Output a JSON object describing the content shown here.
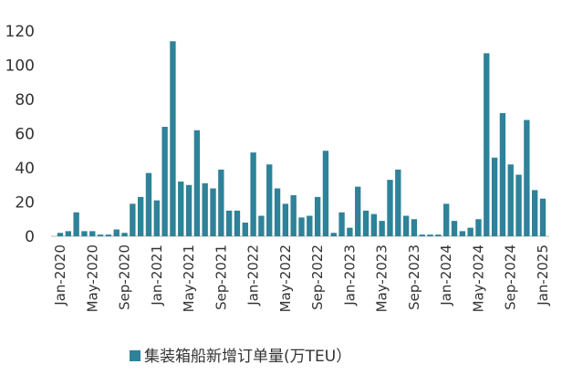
{
  "chart_data": {
    "type": "bar",
    "categories": [
      "Jan-2020",
      null,
      null,
      null,
      "May-2020",
      null,
      null,
      null,
      "Sep-2020",
      null,
      null,
      null,
      "Jan-2021",
      null,
      null,
      null,
      "May-2021",
      null,
      null,
      null,
      "Sep-2021",
      null,
      null,
      null,
      "Jan-2022",
      null,
      null,
      null,
      "May-2022",
      null,
      null,
      null,
      "Sep-2022",
      null,
      null,
      null,
      "Jan-2023",
      null,
      null,
      null,
      "May-2023",
      null,
      null,
      null,
      "Sep-2023",
      null,
      null,
      null,
      "Jan-2024",
      null,
      null,
      null,
      "May-2024",
      null,
      null,
      null,
      "Sep-2024",
      null,
      null,
      null,
      "Jan-2025"
    ],
    "series": [
      {
        "name": "集装箱船新增订单量(万TEU）",
        "color": "#2e8299",
        "values": [
          2,
          3,
          14,
          3,
          3,
          1,
          1,
          4,
          2,
          19,
          23,
          37,
          21,
          64,
          114,
          32,
          30,
          62,
          31,
          28,
          39,
          15,
          15,
          8,
          49,
          12,
          42,
          28,
          19,
          24,
          11,
          12,
          23,
          50,
          2,
          14,
          5,
          29,
          15,
          13,
          9,
          33,
          39,
          12,
          10,
          1,
          1,
          1,
          19,
          9,
          3,
          5,
          10,
          107,
          46,
          72,
          42,
          36,
          68,
          27,
          22
        ]
      }
    ],
    "ylim": [
      0,
      120
    ],
    "yticks": [
      0,
      20,
      40,
      60,
      80,
      100,
      120
    ],
    "grid": false
  }
}
